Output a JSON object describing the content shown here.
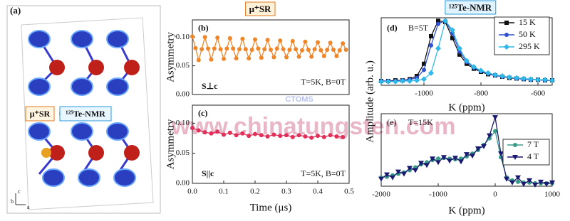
{
  "structure": {
    "panel_label": "(a)",
    "labels": [
      "μ⁺SR",
      "¹²⁵Te-NMR"
    ],
    "axes": [
      "c",
      "b",
      "a"
    ]
  },
  "watermark": {
    "url": "www.chinatungsten.com",
    "logo": "CTOMS"
  },
  "chart_data": [
    {
      "type": "line",
      "title": "μ⁺SR",
      "ylabel": "Asymmetry",
      "annotations": [
        "(b)",
        "S⊥c",
        "T=5K, B=0T"
      ],
      "xlim": [
        0,
        0.5
      ],
      "ylim": [
        0,
        0.13
      ],
      "yticks": [
        {
          "value": 0,
          "label": "0.00"
        },
        {
          "value": 0.05,
          "label": "0.05"
        },
        {
          "value": 0.1,
          "label": "0.10"
        }
      ],
      "x": [
        0,
        0.01,
        0.02,
        0.03,
        0.04,
        0.05,
        0.06,
        0.07,
        0.08,
        0.09,
        0.1,
        0.11,
        0.12,
        0.13,
        0.14,
        0.15,
        0.16,
        0.17,
        0.18,
        0.19,
        0.2,
        0.21,
        0.22,
        0.23,
        0.24,
        0.25,
        0.26,
        0.27,
        0.28,
        0.29,
        0.3,
        0.31,
        0.32,
        0.33,
        0.34,
        0.35,
        0.36,
        0.37,
        0.38,
        0.39,
        0.4,
        0.41,
        0.42,
        0.43,
        0.44,
        0.45,
        0.46,
        0.47,
        0.48,
        0.49
      ],
      "series": [
        {
          "color": "#f0862a",
          "marker": "circle",
          "values": [
            0.101,
            0.081,
            0.06,
            0.079,
            0.1,
            0.08,
            0.061,
            0.08,
            0.099,
            0.079,
            0.062,
            0.08,
            0.098,
            0.08,
            0.063,
            0.079,
            0.097,
            0.079,
            0.063,
            0.078,
            0.096,
            0.08,
            0.064,
            0.079,
            0.095,
            0.078,
            0.065,
            0.08,
            0.094,
            0.079,
            0.065,
            0.078,
            0.093,
            0.079,
            0.066,
            0.077,
            0.092,
            0.078,
            0.066,
            0.079,
            0.091,
            0.077,
            0.067,
            0.078,
            0.09,
            0.078,
            0.067,
            0.077,
            0.089,
            0.078
          ]
        }
      ]
    },
    {
      "type": "line",
      "ylabel": "Asymmetry",
      "xlabel": "Time (μs)",
      "annotations": [
        "(c)",
        "S||c",
        "T=5K, B=0T"
      ],
      "xlim": [
        0,
        0.5
      ],
      "ylim": [
        0,
        0.13
      ],
      "xticks": [
        {
          "value": 0,
          "label": "0.0"
        },
        0.1,
        0.2,
        0.3,
        0.4,
        0.5
      ],
      "yticks": [
        {
          "value": 0,
          "label": "0.00"
        },
        {
          "value": 0.05,
          "label": "0.05"
        },
        {
          "value": 0.1,
          "label": "0.10"
        }
      ],
      "x": [
        0,
        0.02,
        0.04,
        0.06,
        0.08,
        0.1,
        0.12,
        0.14,
        0.16,
        0.18,
        0.2,
        0.22,
        0.24,
        0.26,
        0.28,
        0.3,
        0.32,
        0.34,
        0.36,
        0.38,
        0.4,
        0.42,
        0.44,
        0.46,
        0.48
      ],
      "series": [
        {
          "color": "#e0305a",
          "marker": "circle",
          "values": [
            0.092,
            0.088,
            0.085,
            0.083,
            0.086,
            0.081,
            0.084,
            0.08,
            0.083,
            0.079,
            0.082,
            0.08,
            0.078,
            0.081,
            0.079,
            0.08,
            0.077,
            0.08,
            0.078,
            0.076,
            0.079,
            0.077,
            0.08,
            0.078,
            0.077
          ]
        }
      ]
    },
    {
      "type": "line",
      "title": "¹²⁵Te-NMR",
      "ylabel": "Amplitude (arb. u.)",
      "xlabel": "K (ppm)",
      "annotations": [
        "(d)",
        "B=5T"
      ],
      "legend": "upper right",
      "xlim": [
        -1150,
        -550
      ],
      "ylim": [
        -0.05,
        1.05
      ],
      "xticks": [
        -1000,
        -800,
        -600
      ],
      "x": [
        -1150,
        -1125,
        -1100,
        -1075,
        -1050,
        -1025,
        -1000,
        -975,
        -950,
        -925,
        -900,
        -875,
        -850,
        -825,
        -800,
        -775,
        -750,
        -725,
        -700,
        -675,
        -650,
        -625,
        -600,
        -575,
        -550
      ],
      "series": [
        {
          "name": "15 K",
          "color": "#111111",
          "marker": "square",
          "values": [
            0.02,
            0.02,
            0.03,
            0.03,
            0.05,
            0.1,
            0.3,
            0.75,
            1.0,
            0.98,
            0.72,
            0.45,
            0.3,
            0.22,
            0.17,
            0.13,
            0.11,
            0.09,
            0.07,
            0.06,
            0.05,
            0.04,
            0.04,
            0.03,
            0.03
          ]
        },
        {
          "name": "50 K",
          "color": "#3050d0",
          "marker": "circle",
          "values": [
            0.02,
            0.02,
            0.02,
            0.03,
            0.04,
            0.07,
            0.2,
            0.6,
            0.95,
            1.0,
            0.8,
            0.5,
            0.33,
            0.24,
            0.18,
            0.14,
            0.11,
            0.09,
            0.08,
            0.06,
            0.05,
            0.04,
            0.04,
            0.03,
            0.03
          ]
        },
        {
          "name": "295 K",
          "color": "#30b8e8",
          "marker": "diamond",
          "values": [
            0.01,
            0.01,
            0.01,
            0.02,
            0.02,
            0.03,
            0.05,
            0.15,
            0.55,
            1.0,
            0.85,
            0.55,
            0.35,
            0.25,
            0.19,
            0.15,
            0.12,
            0.1,
            0.08,
            0.07,
            0.06,
            0.05,
            0.04,
            0.04,
            0.03
          ]
        }
      ]
    },
    {
      "type": "line",
      "xlabel": "K (ppm)",
      "annotations": [
        "(e)",
        "T=15K"
      ],
      "legend": "right",
      "xlim": [
        -2000,
        1000
      ],
      "ylim": [
        0,
        1.0
      ],
      "xticks": [
        -2000,
        -1000,
        0,
        1000
      ],
      "x": [
        -2000,
        -1900,
        -1800,
        -1700,
        -1600,
        -1500,
        -1400,
        -1300,
        -1200,
        -1100,
        -1000,
        -900,
        -800,
        -700,
        -600,
        -500,
        -400,
        -300,
        -200,
        -100,
        0,
        100,
        200,
        300,
        400,
        500,
        600,
        700,
        800,
        900,
        1000
      ],
      "series": [
        {
          "name": "7 T",
          "color": "#3a9a8a",
          "marker": "circle",
          "values": [
            0.12,
            0.13,
            0.15,
            0.17,
            0.19,
            0.22,
            0.26,
            0.3,
            0.33,
            0.36,
            0.38,
            0.39,
            0.38,
            0.37,
            0.38,
            0.41,
            0.45,
            0.5,
            0.57,
            0.66,
            0.76,
            0.4,
            0.12,
            0.08,
            0.06,
            0.05,
            0.05,
            0.04,
            0.04,
            0.04,
            0.04
          ]
        },
        {
          "name": "4 T",
          "color": "#1a1a70",
          "marker": "triangle-down",
          "values": [
            0.1,
            0.16,
            0.12,
            0.2,
            0.17,
            0.25,
            0.22,
            0.32,
            0.29,
            0.38,
            0.33,
            0.4,
            0.35,
            0.39,
            0.34,
            0.44,
            0.42,
            0.52,
            0.55,
            0.7,
            0.95,
            0.45,
            0.1,
            0.05,
            0.12,
            0.03,
            0.08,
            0.02,
            0.06,
            0.03,
            0.05
          ]
        }
      ]
    }
  ]
}
